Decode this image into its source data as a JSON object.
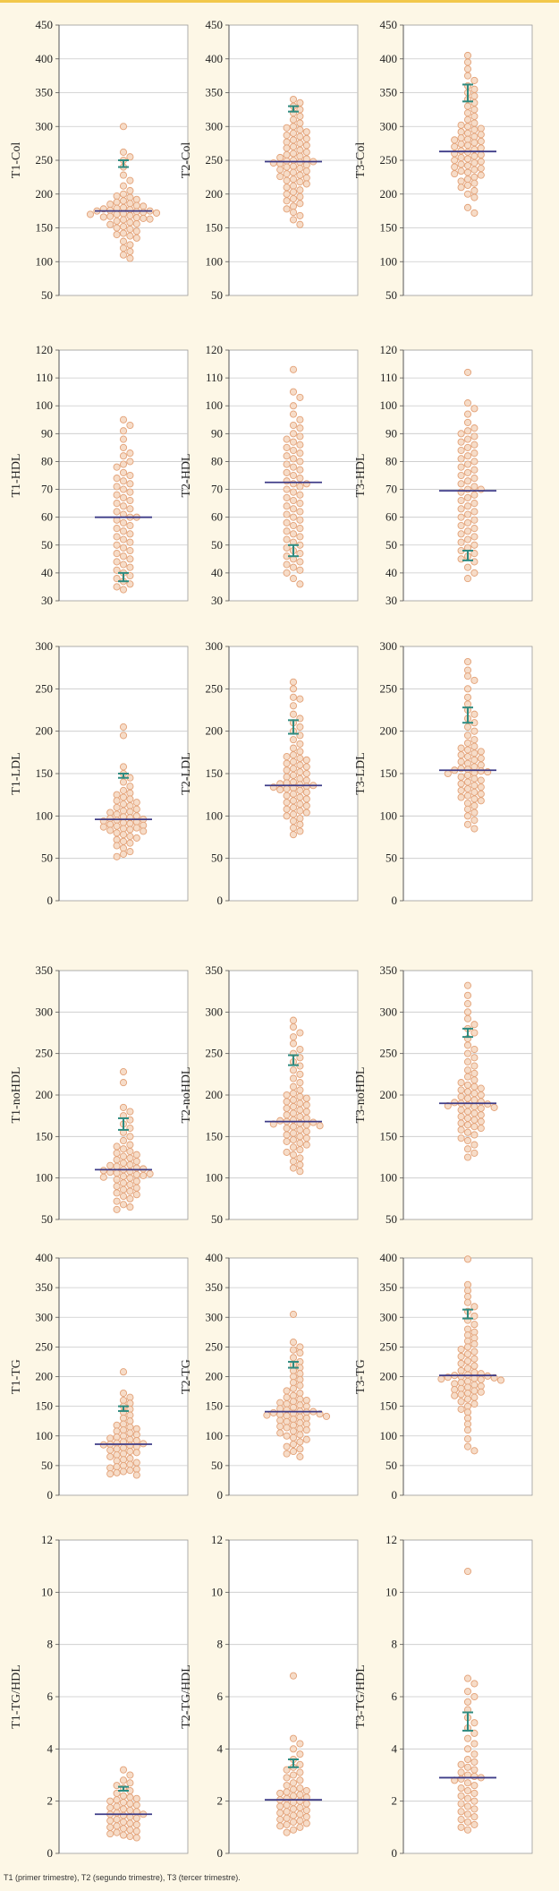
{
  "caption": "T1 (primer trimestre), T2 (segundo trimestre), T3 (tercer trimestre).",
  "colors": {
    "page": "#fdf7e6",
    "plot_bg": "#ffffff",
    "grid": "#c9c9c9",
    "dot_fill": "#f6dcc8",
    "dot_stroke": "#e3a278",
    "median": "#3e3c88",
    "error": "#2e8b80"
  },
  "chart_data": [
    {
      "type": "scatter",
      "ylabel": "T1-Col",
      "ylim": [
        50,
        450
      ],
      "yticks": [
        50,
        100,
        150,
        200,
        250,
        300,
        350,
        400,
        450
      ],
      "median": 175,
      "bars": [
        240,
        250
      ],
      "points": [
        300,
        262,
        255,
        250,
        240,
        228,
        220,
        212,
        205,
        200,
        197,
        195,
        192,
        190,
        188,
        186,
        185,
        183,
        182,
        180,
        179,
        178,
        177,
        176,
        175,
        175,
        174,
        173,
        172,
        171,
        170,
        170,
        168,
        167,
        166,
        165,
        164,
        163,
        162,
        160,
        158,
        156,
        155,
        152,
        150,
        148,
        145,
        142,
        140,
        138,
        135,
        130,
        125,
        120,
        115,
        110,
        105
      ]
    },
    {
      "type": "scatter",
      "ylabel": "T2-Col",
      "ylim": [
        50,
        450
      ],
      "yticks": [
        50,
        100,
        150,
        200,
        250,
        300,
        350,
        400,
        450
      ],
      "median": 248,
      "bars": [
        322,
        330
      ],
      "points": [
        340,
        335,
        330,
        325,
        320,
        315,
        310,
        305,
        300,
        298,
        295,
        292,
        290,
        287,
        285,
        282,
        280,
        277,
        275,
        272,
        270,
        268,
        265,
        262,
        260,
        258,
        256,
        254,
        252,
        250,
        249,
        248,
        247,
        246,
        245,
        243,
        241,
        240,
        238,
        236,
        234,
        232,
        230,
        228,
        226,
        224,
        222,
        220,
        218,
        215,
        212,
        210,
        206,
        203,
        200,
        196,
        193,
        190,
        186,
        182,
        178,
        173,
        168,
        162,
        155
      ]
    },
    {
      "type": "scatter",
      "ylabel": "T3-Col",
      "ylim": [
        50,
        450
      ],
      "yticks": [
        50,
        100,
        150,
        200,
        250,
        300,
        350,
        400,
        450
      ],
      "median": 263,
      "bars": [
        337,
        362
      ],
      "points": [
        405,
        395,
        385,
        375,
        368,
        360,
        355,
        350,
        345,
        340,
        335,
        330,
        325,
        320,
        315,
        310,
        305,
        302,
        300,
        297,
        295,
        292,
        290,
        288,
        285,
        283,
        281,
        280,
        278,
        276,
        274,
        272,
        270,
        268,
        266,
        264,
        262,
        260,
        258,
        256,
        254,
        252,
        250,
        248,
        246,
        244,
        242,
        240,
        238,
        236,
        234,
        232,
        230,
        228,
        225,
        222,
        219,
        216,
        213,
        210,
        205,
        200,
        195,
        180,
        172
      ]
    },
    {
      "type": "scatter",
      "ylabel": "T1-HDL",
      "ylim": [
        30,
        120
      ],
      "yticks": [
        30,
        40,
        50,
        60,
        70,
        80,
        90,
        100,
        110,
        120
      ],
      "median": 60,
      "bars": [
        37,
        40
      ],
      "points": [
        95,
        93,
        91,
        88,
        85,
        83,
        82,
        80,
        79,
        78,
        76,
        75,
        74,
        73,
        72,
        71,
        70,
        69,
        68,
        67,
        66,
        65,
        64,
        63,
        62,
        61,
        60,
        60,
        59,
        58,
        57,
        56,
        55,
        54,
        53,
        52,
        51,
        50,
        49,
        48,
        47,
        46,
        45,
        44,
        43,
        42,
        41,
        40,
        39,
        38,
        37,
        36,
        35,
        34
      ]
    },
    {
      "type": "scatter",
      "ylabel": "T2-HDL",
      "ylim": [
        30,
        120
      ],
      "yticks": [
        30,
        40,
        50,
        60,
        70,
        80,
        90,
        100,
        110,
        120
      ],
      "median": 72.5,
      "bars": [
        46,
        50
      ],
      "points": [
        113,
        105,
        103,
        100,
        97,
        95,
        93,
        92,
        90,
        89,
        88,
        87,
        86,
        85,
        84,
        83,
        82,
        81,
        80,
        79,
        78,
        77,
        76,
        75,
        74,
        73,
        72,
        72,
        71,
        70,
        69,
        68,
        67,
        66,
        65,
        64,
        63,
        62,
        61,
        60,
        59,
        58,
        57,
        56,
        55,
        54,
        53,
        52,
        51,
        50,
        49,
        48,
        47,
        46,
        45,
        44,
        43,
        42,
        41,
        40,
        38,
        36
      ]
    },
    {
      "type": "scatter",
      "ylabel": "T3-HDL",
      "ylim": [
        30,
        120
      ],
      "yticks": [
        30,
        40,
        50,
        60,
        70,
        80,
        90,
        100,
        110,
        120
      ],
      "median": 69.5,
      "bars": [
        44.5,
        48
      ],
      "points": [
        112,
        101,
        99,
        97,
        94,
        92,
        91,
        90,
        89,
        88,
        87,
        86,
        85,
        84,
        83,
        82,
        81,
        80,
        79,
        78,
        77,
        76,
        75,
        74,
        73,
        72,
        71,
        70,
        70,
        69,
        68,
        67,
        66,
        65,
        64,
        63,
        62,
        61,
        60,
        59,
        58,
        57,
        56,
        55,
        54,
        53,
        52,
        51,
        50,
        49,
        48,
        47,
        46,
        45,
        44,
        42,
        40,
        38
      ]
    },
    {
      "type": "scatter",
      "ylabel": "T1-LDL",
      "ylim": [
        0,
        300
      ],
      "yticks": [
        0,
        50,
        100,
        150,
        200,
        250,
        300
      ],
      "median": 96,
      "bars": [
        145,
        150
      ],
      "points": [
        205,
        195,
        158,
        150,
        145,
        140,
        135,
        130,
        127,
        125,
        122,
        120,
        118,
        116,
        114,
        112,
        110,
        108,
        106,
        105,
        104,
        102,
        100,
        99,
        98,
        97,
        96,
        95,
        94,
        93,
        92,
        91,
        90,
        89,
        88,
        87,
        86,
        85,
        84,
        83,
        82,
        80,
        78,
        76,
        74,
        72,
        70,
        68,
        65,
        62,
        58,
        55,
        52
      ]
    },
    {
      "type": "scatter",
      "ylabel": "T2-LDL",
      "ylim": [
        0,
        300
      ],
      "yticks": [
        0,
        50,
        100,
        150,
        200,
        250,
        300
      ],
      "median": 136,
      "bars": [
        197,
        213
      ],
      "points": [
        258,
        250,
        240,
        238,
        230,
        220,
        215,
        210,
        205,
        200,
        195,
        190,
        185,
        180,
        176,
        172,
        170,
        168,
        166,
        164,
        162,
        160,
        158,
        156,
        154,
        152,
        150,
        148,
        146,
        144,
        142,
        140,
        139,
        138,
        137,
        136,
        135,
        134,
        133,
        132,
        131,
        130,
        128,
        126,
        124,
        122,
        120,
        118,
        116,
        114,
        112,
        110,
        108,
        106,
        104,
        102,
        100,
        97,
        94,
        90,
        86,
        82,
        78
      ]
    },
    {
      "type": "scatter",
      "ylabel": "T3-LDL",
      "ylim": [
        0,
        300
      ],
      "yticks": [
        0,
        50,
        100,
        150,
        200,
        250,
        300
      ],
      "median": 154,
      "bars": [
        210,
        228
      ],
      "points": [
        282,
        272,
        265,
        260,
        250,
        240,
        232,
        225,
        220,
        215,
        210,
        205,
        200,
        195,
        190,
        186,
        182,
        180,
        178,
        176,
        174,
        172,
        170,
        168,
        166,
        164,
        162,
        160,
        158,
        156,
        155,
        154,
        153,
        152,
        151,
        150,
        148,
        146,
        144,
        142,
        140,
        138,
        136,
        134,
        132,
        130,
        128,
        126,
        124,
        122,
        120,
        118,
        115,
        112,
        108,
        104,
        100,
        95,
        90,
        85
      ]
    },
    {
      "type": "scatter",
      "ylabel": "T1-noHDL",
      "ylim": [
        50,
        350
      ],
      "yticks": [
        50,
        100,
        150,
        200,
        250,
        300,
        350
      ],
      "median": 110,
      "bars": [
        158,
        172
      ],
      "points": [
        228,
        215,
        185,
        180,
        175,
        170,
        165,
        160,
        155,
        150,
        145,
        140,
        138,
        135,
        132,
        130,
        128,
        126,
        124,
        122,
        120,
        118,
        116,
        115,
        114,
        112,
        111,
        110,
        109,
        108,
        107,
        106,
        105,
        104,
        103,
        102,
        101,
        100,
        98,
        96,
        94,
        92,
        90,
        88,
        86,
        84,
        82,
        80,
        78,
        75,
        72,
        68,
        65,
        62
      ]
    },
    {
      "type": "scatter",
      "ylabel": "T2-noHDL",
      "ylim": [
        50,
        350
      ],
      "yticks": [
        50,
        100,
        150,
        200,
        250,
        300,
        350
      ],
      "median": 168,
      "bars": [
        236,
        248
      ],
      "points": [
        290,
        282,
        275,
        270,
        262,
        255,
        250,
        245,
        240,
        235,
        230,
        225,
        220,
        215,
        210,
        206,
        202,
        200,
        198,
        196,
        194,
        192,
        190,
        188,
        186,
        184,
        182,
        180,
        178,
        176,
        174,
        172,
        170,
        169,
        168,
        167,
        166,
        165,
        164,
        163,
        162,
        160,
        158,
        156,
        154,
        152,
        150,
        148,
        146,
        144,
        142,
        140,
        137,
        134,
        131,
        128,
        124,
        120,
        116,
        112,
        108
      ]
    },
    {
      "type": "scatter",
      "ylabel": "T3-noHDL",
      "ylim": [
        50,
        350
      ],
      "yticks": [
        50,
        100,
        150,
        200,
        250,
        300,
        350
      ],
      "median": 190,
      "bars": [
        270,
        280
      ],
      "points": [
        332,
        320,
        310,
        300,
        292,
        285,
        280,
        275,
        268,
        260,
        255,
        250,
        245,
        240,
        235,
        230,
        226,
        222,
        218,
        215,
        212,
        210,
        208,
        206,
        204,
        202,
        200,
        198,
        196,
        194,
        192,
        191,
        190,
        189,
        188,
        187,
        186,
        185,
        184,
        182,
        180,
        178,
        176,
        174,
        172,
        170,
        168,
        166,
        164,
        162,
        160,
        158,
        155,
        152,
        148,
        145,
        140,
        135,
        130,
        125
      ]
    },
    {
      "type": "scatter",
      "ylabel": "T1-TG",
      "ylim": [
        0,
        400
      ],
      "yticks": [
        0,
        50,
        100,
        150,
        200,
        250,
        300,
        350,
        400
      ],
      "median": 86,
      "bars": [
        142,
        150
      ],
      "points": [
        208,
        172,
        165,
        160,
        155,
        150,
        145,
        140,
        135,
        130,
        125,
        120,
        118,
        115,
        112,
        110,
        108,
        105,
        102,
        100,
        98,
        96,
        94,
        92,
        90,
        88,
        87,
        86,
        85,
        84,
        82,
        80,
        78,
        76,
        74,
        72,
        70,
        68,
        65,
        62,
        60,
        58,
        55,
        52,
        50,
        48,
        46,
        44,
        42,
        40,
        38,
        36,
        34
      ]
    },
    {
      "type": "scatter",
      "ylabel": "T2-TG",
      "ylim": [
        0,
        400
      ],
      "yticks": [
        0,
        50,
        100,
        150,
        200,
        250,
        300,
        350,
        400
      ],
      "median": 141,
      "bars": [
        215,
        225
      ],
      "points": [
        305,
        258,
        250,
        245,
        240,
        232,
        225,
        220,
        215,
        210,
        205,
        200,
        195,
        190,
        185,
        180,
        176,
        172,
        168,
        165,
        162,
        160,
        158,
        156,
        154,
        152,
        150,
        148,
        146,
        144,
        142,
        141,
        140,
        139,
        138,
        137,
        136,
        135,
        134,
        133,
        132,
        130,
        128,
        126,
        124,
        122,
        120,
        118,
        116,
        114,
        112,
        110,
        108,
        105,
        102,
        100,
        97,
        94,
        90,
        86,
        82,
        78,
        74,
        70,
        65
      ]
    },
    {
      "type": "scatter",
      "ylabel": "T3-TG",
      "ylim": [
        0,
        400
      ],
      "yticks": [
        0,
        50,
        100,
        150,
        200,
        250,
        300,
        350,
        400
      ],
      "median": 202,
      "bars": [
        298,
        313
      ],
      "points": [
        398,
        355,
        345,
        335,
        325,
        318,
        310,
        302,
        295,
        288,
        280,
        275,
        270,
        265,
        260,
        255,
        250,
        246,
        242,
        238,
        234,
        230,
        226,
        222,
        218,
        214,
        210,
        207,
        205,
        203,
        202,
        201,
        200,
        199,
        198,
        197,
        196,
        195,
        194,
        192,
        190,
        188,
        186,
        184,
        182,
        180,
        178,
        176,
        174,
        172,
        170,
        168,
        165,
        162,
        158,
        154,
        150,
        145,
        140,
        130,
        120,
        110,
        95,
        82,
        75
      ]
    },
    {
      "type": "scatter",
      "ylabel": "T1-TG/HDL",
      "ylim": [
        0,
        12
      ],
      "yticks": [
        0,
        2,
        4,
        6,
        8,
        10,
        12
      ],
      "median": 1.5,
      "bars": [
        2.4,
        2.55
      ],
      "points": [
        3.2,
        3.0,
        2.8,
        2.7,
        2.6,
        2.5,
        2.4,
        2.3,
        2.2,
        2.15,
        2.1,
        2.05,
        2.0,
        1.95,
        1.9,
        1.85,
        1.8,
        1.75,
        1.7,
        1.65,
        1.6,
        1.55,
        1.5,
        1.5,
        1.45,
        1.4,
        1.35,
        1.3,
        1.25,
        1.2,
        1.15,
        1.1,
        1.05,
        1.0,
        0.95,
        0.9,
        0.85,
        0.8,
        0.75,
        0.7,
        0.65,
        0.6
      ]
    },
    {
      "type": "scatter",
      "ylabel": "T2-TG/HDL",
      "ylim": [
        0,
        12
      ],
      "yticks": [
        0,
        2,
        4,
        6,
        8,
        10,
        12
      ],
      "median": 2.05,
      "bars": [
        3.3,
        3.6
      ],
      "points": [
        6.8,
        4.4,
        4.2,
        4.0,
        3.8,
        3.6,
        3.4,
        3.3,
        3.2,
        3.1,
        3.0,
        2.9,
        2.8,
        2.7,
        2.6,
        2.5,
        2.45,
        2.4,
        2.35,
        2.3,
        2.25,
        2.2,
        2.15,
        2.1,
        2.05,
        2.0,
        1.95,
        1.9,
        1.85,
        1.8,
        1.75,
        1.7,
        1.65,
        1.6,
        1.55,
        1.5,
        1.45,
        1.4,
        1.35,
        1.3,
        1.25,
        1.2,
        1.15,
        1.1,
        1.05,
        1.0,
        0.9,
        0.8
      ]
    },
    {
      "type": "scatter",
      "ylabel": "T3-TG/HDL",
      "ylim": [
        0,
        12
      ],
      "yticks": [
        0,
        2,
        4,
        6,
        8,
        10,
        12
      ],
      "median": 2.9,
      "bars": [
        4.7,
        5.4
      ],
      "points": [
        10.8,
        6.7,
        6.5,
        6.2,
        6.0,
        5.8,
        5.5,
        5.2,
        5.0,
        4.8,
        4.6,
        4.4,
        4.2,
        4.0,
        3.8,
        3.6,
        3.5,
        3.4,
        3.3,
        3.2,
        3.1,
        3.0,
        2.95,
        2.9,
        2.85,
        2.8,
        2.7,
        2.6,
        2.5,
        2.4,
        2.3,
        2.2,
        2.1,
        2.0,
        1.9,
        1.8,
        1.7,
        1.6,
        1.5,
        1.4,
        1.3,
        1.2,
        1.1,
        1.0,
        0.9
      ]
    }
  ]
}
